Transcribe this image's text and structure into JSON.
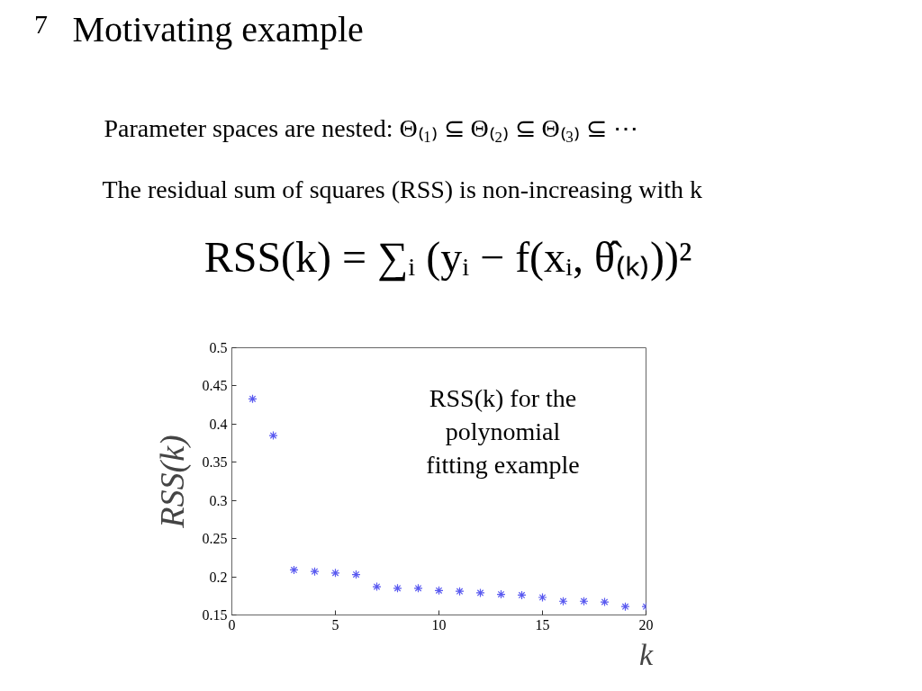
{
  "chart_data": {
    "type": "scatter",
    "title": "Motivating example",
    "xlabel": "k",
    "ylabel": "RSS(k)",
    "annotations": [
      "7",
      "Parameter spaces are nested: Θ₍₁₎ ⊆ Θ₍₂₎ ⊆ Θ₍₃₎ ⊆ ⋯",
      "The residual sum of squares (RSS) is non-increasing with k",
      "RSS(k) = ∑ᵢ (yᵢ − f(xᵢ, θ̂₍ₖ₎))²",
      "RSS(k) for the polynomial fitting example"
    ],
    "x": [
      1,
      2,
      3,
      4,
      5,
      6,
      7,
      8,
      9,
      10,
      11,
      12,
      13,
      14,
      15,
      16,
      17,
      18,
      19,
      20
    ],
    "series": [
      {
        "color": "#5a5af0",
        "values": [
          0.433,
          0.385,
          0.209,
          0.207,
          0.205,
          0.203,
          0.187,
          0.185,
          0.185,
          0.182,
          0.181,
          0.179,
          0.177,
          0.176,
          0.173,
          0.168,
          0.168,
          0.167,
          0.161,
          0.161
        ]
      }
    ],
    "xlim": [
      0,
      20
    ],
    "ylim": [
      0.15,
      0.5
    ],
    "xticks": [
      0,
      5,
      10,
      15,
      20
    ],
    "yticks": [
      0.15,
      0.2,
      0.25,
      0.3,
      0.35,
      0.4,
      0.45,
      0.5
    ],
    "marker": "cross"
  }
}
